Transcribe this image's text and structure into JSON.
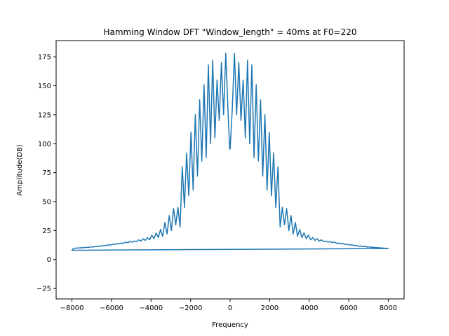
{
  "chart_data": {
    "type": "line",
    "title": "Hamming Window DFT \"Window_length\" = 40ms at F0=220",
    "xlabel": "Frequency",
    "ylabel": "Amplitude(DB)",
    "xlim": [
      -8800,
      8800
    ],
    "ylim": [
      -34,
      189
    ],
    "xticks": [
      -8000,
      -6000,
      -4000,
      -2000,
      0,
      2000,
      4000,
      6000,
      8000
    ],
    "xtick_labels": [
      "−8000",
      "−6000",
      "−4000",
      "−2000",
      "0",
      "2000",
      "4000",
      "6000",
      "8000"
    ],
    "yticks": [
      -25,
      0,
      25,
      50,
      75,
      100,
      125,
      150,
      175
    ],
    "ytick_labels": [
      "−25",
      "0",
      "25",
      "50",
      "75",
      "100",
      "125",
      "150",
      "175"
    ],
    "grid": false,
    "line_color": "#1f77b4",
    "series": [
      {
        "x": [
          0,
          110,
          220,
          330,
          440,
          550,
          660,
          770,
          880,
          990,
          1100,
          1210,
          1320,
          1430,
          1540,
          1650,
          1760,
          1870,
          1980,
          2090,
          2200,
          2310,
          2420,
          2530,
          2640,
          2750,
          2860,
          2970,
          3080,
          3190,
          3300,
          3410,
          3520,
          3630,
          3740,
          3850,
          3960,
          4070,
          4180,
          4290,
          4400,
          4510,
          4620,
          4730,
          4840,
          4950,
          5060,
          5170,
          5280,
          5390,
          5500,
          5610,
          5720,
          5830,
          5940,
          6050,
          6160,
          6270,
          6380,
          6490,
          6600,
          6710,
          6820,
          6930,
          7040,
          7150,
          7260,
          7370,
          7480,
          7590,
          7700,
          7810,
          7920,
          8000,
          -8000,
          -7920,
          -7810,
          -7700,
          -7590,
          -7480,
          -7370,
          -7260,
          -7150,
          -7040,
          -6930,
          -6820,
          -6710,
          -6600,
          -6490,
          -6380,
          -6270,
          -6160,
          -6050,
          -5940,
          -5830,
          -5720,
          -5610,
          -5500,
          -5390,
          -5280,
          -5170,
          -5060,
          -4950,
          -4840,
          -4730,
          -4620,
          -4510,
          -4400,
          -4290,
          -4180,
          -4070,
          -3960,
          -3850,
          -3740,
          -3630,
          -3520,
          -3410,
          -3300,
          -3190,
          -3080,
          -2970,
          -2860,
          -2750,
          -2640,
          -2530,
          -2420,
          -2310,
          -2200,
          -2090,
          -1980,
          -1870,
          -1760,
          -1650,
          -1540,
          -1430,
          -1320,
          -1210,
          -1100,
          -990,
          -880,
          -770,
          -660,
          -550,
          -440,
          -330,
          -220,
          -110,
          -20
        ],
        "y": [
          95,
          130,
          178,
          125,
          170,
          120,
          155,
          105,
          172,
          100,
          168,
          88,
          151,
          85,
          138,
          72,
          125,
          60,
          110,
          55,
          92,
          45,
          80,
          28,
          45,
          30,
          44,
          25,
          38,
          22,
          32,
          20,
          26,
          19,
          23,
          18,
          21,
          17,
          19,
          16.5,
          18,
          16,
          17,
          15.5,
          16,
          15,
          15.5,
          14.5,
          15,
          14,
          14.2,
          13.5,
          13.8,
          13,
          13.2,
          12.5,
          12.7,
          12,
          12.2,
          11.5,
          11.7,
          11.1,
          11.3,
          10.8,
          10.9,
          10.5,
          10.6,
          10.2,
          10.3,
          10,
          10,
          9.8,
          9.7,
          9.5,
          8,
          9.7,
          9.8,
          10,
          10,
          10.3,
          10.2,
          10.6,
          10.5,
          10.9,
          10.8,
          11.3,
          11.1,
          11.7,
          11.5,
          12.2,
          12,
          12.7,
          12.5,
          13.2,
          13,
          13.8,
          13.5,
          14.2,
          14,
          15,
          14.5,
          15.5,
          15,
          16,
          15.5,
          17,
          16,
          18,
          16.5,
          19,
          17,
          21,
          18,
          23,
          19,
          26,
          20,
          32,
          22,
          38,
          25,
          44,
          30,
          45,
          28,
          80,
          45,
          92,
          55,
          110,
          60,
          125,
          72,
          138,
          85,
          151,
          88,
          168,
          100,
          172,
          105,
          155,
          120,
          170,
          125,
          178,
          130,
          95
        ]
      }
    ]
  }
}
